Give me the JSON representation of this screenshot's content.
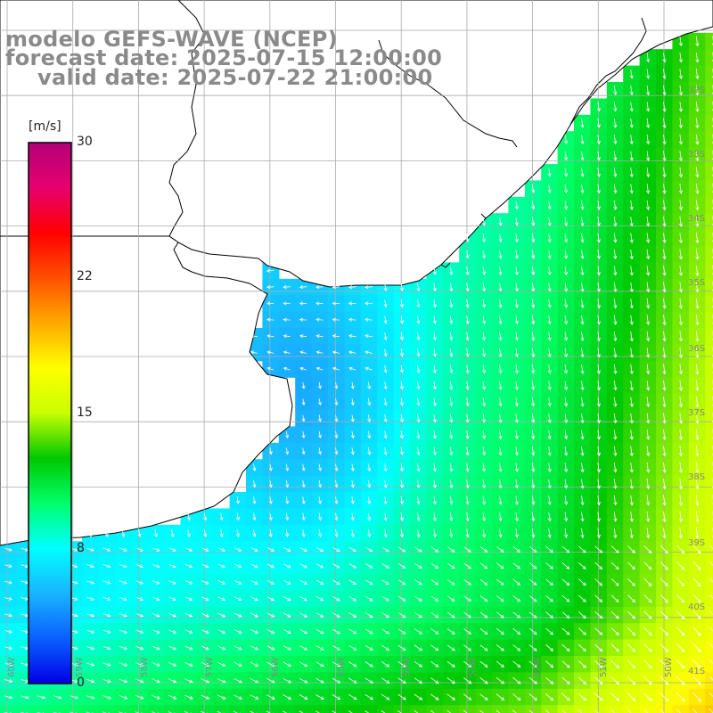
{
  "title": {
    "line1": "modelo GEFS-WAVE (NCEP)",
    "line2": "forecast date: 2025-07-15 12:00:00",
    "line3": "valid date: 2025-07-22 21:00:00"
  },
  "colorbar": {
    "unit": "[m/s]",
    "min": 0,
    "max": 30,
    "ticks": [
      "30",
      "22",
      "15",
      "8",
      "0"
    ],
    "tick_values": [
      30,
      22,
      15,
      8,
      0
    ],
    "colors": [
      "#0000e6",
      "#0a60ff",
      "#19b4ff",
      "#00ffff",
      "#00ff6a",
      "#00c800",
      "#c8ff00",
      "#ffff00",
      "#ffaa00",
      "#ff5000",
      "#ff0000",
      "#e6006e",
      "#b40078"
    ]
  },
  "map": {
    "lon_labels": [
      "60W",
      "59W",
      "58W",
      "57W",
      "56W",
      "55W",
      "54W",
      "53W",
      "52W",
      "51W",
      "50W"
    ],
    "lat_labels": [
      "32S",
      "33S",
      "34S",
      "35S",
      "36S",
      "37S",
      "38S",
      "39S",
      "40S",
      "41S"
    ],
    "land_color": "#ffffff",
    "grid_color": "#aaaaaa",
    "arrow_color": "#ffffff"
  }
}
